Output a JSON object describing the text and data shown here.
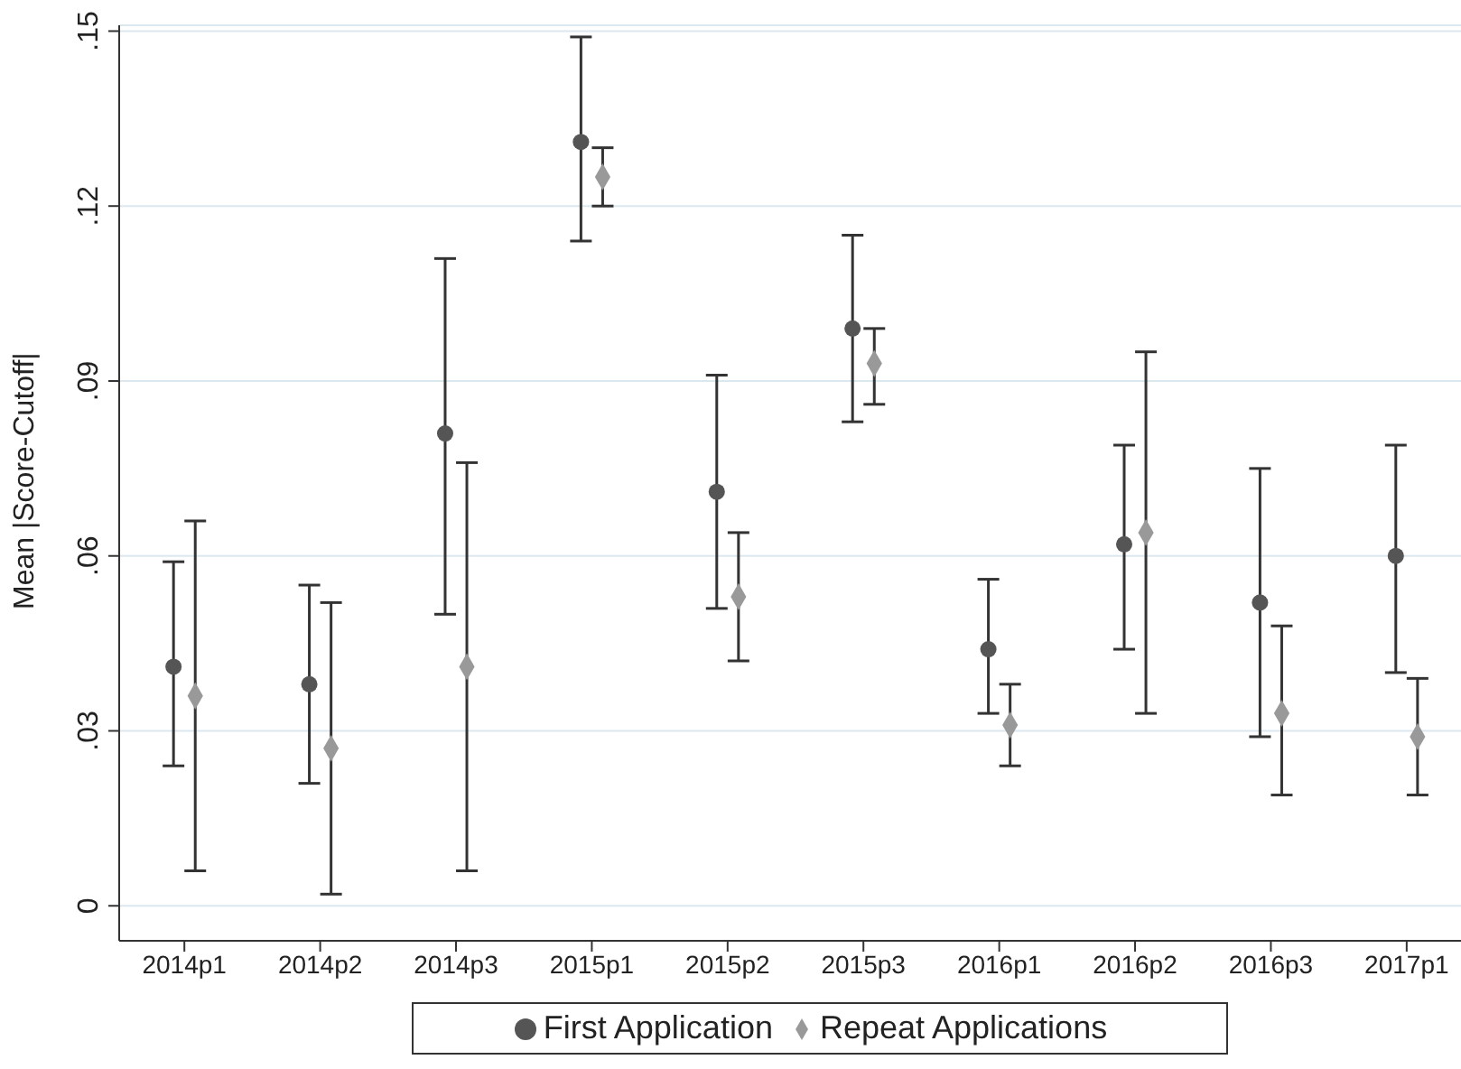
{
  "chart_data": {
    "type": "scatter",
    "ylabel": "Mean |Score-Cutoff|",
    "categories": [
      "2014p1",
      "2014p2",
      "2014p3",
      "2015p1",
      "2015p2",
      "2015p3",
      "2016p1",
      "2016p2",
      "2016p3",
      "2017p1"
    ],
    "ylim": [
      -0.006,
      0.151
    ],
    "yticks": [
      {
        "value": 0,
        "label": "0"
      },
      {
        "value": 0.03,
        "label": ".03"
      },
      {
        "value": 0.06,
        "label": ".06"
      },
      {
        "value": 0.09,
        "label": ".09"
      },
      {
        "value": 0.12,
        "label": ".12"
      },
      {
        "value": 0.15,
        "label": ".15"
      }
    ],
    "grid": "y",
    "legend": "bottom",
    "series": [
      {
        "name": "First Application",
        "color": "#555555",
        "marker": "circle",
        "values": [
          0.041,
          0.038,
          0.081,
          0.131,
          0.071,
          0.099,
          0.044,
          0.062,
          0.052,
          0.06
        ],
        "errors": [
          [
            0.024,
            0.059
          ],
          [
            0.021,
            0.055
          ],
          [
            0.05,
            0.111
          ],
          [
            0.114,
            0.149
          ],
          [
            0.051,
            0.091
          ],
          [
            0.083,
            0.115
          ],
          [
            0.033,
            0.056
          ],
          [
            0.044,
            0.079
          ],
          [
            0.029,
            0.075
          ],
          [
            0.04,
            0.079
          ]
        ]
      },
      {
        "name": "Repeat Applications",
        "color": "#999999",
        "marker": "diamond",
        "values": [
          0.036,
          0.027,
          0.041,
          0.125,
          0.053,
          0.093,
          0.031,
          0.064,
          0.033,
          0.029
        ],
        "errors": [
          [
            0.006,
            0.066
          ],
          [
            0.002,
            0.052
          ],
          [
            0.006,
            0.076
          ],
          [
            0.12,
            0.13
          ],
          [
            0.042,
            0.064
          ],
          [
            0.086,
            0.099
          ],
          [
            0.024,
            0.038
          ],
          [
            0.033,
            0.095
          ],
          [
            0.019,
            0.048
          ],
          [
            0.019,
            0.039
          ]
        ]
      }
    ]
  }
}
